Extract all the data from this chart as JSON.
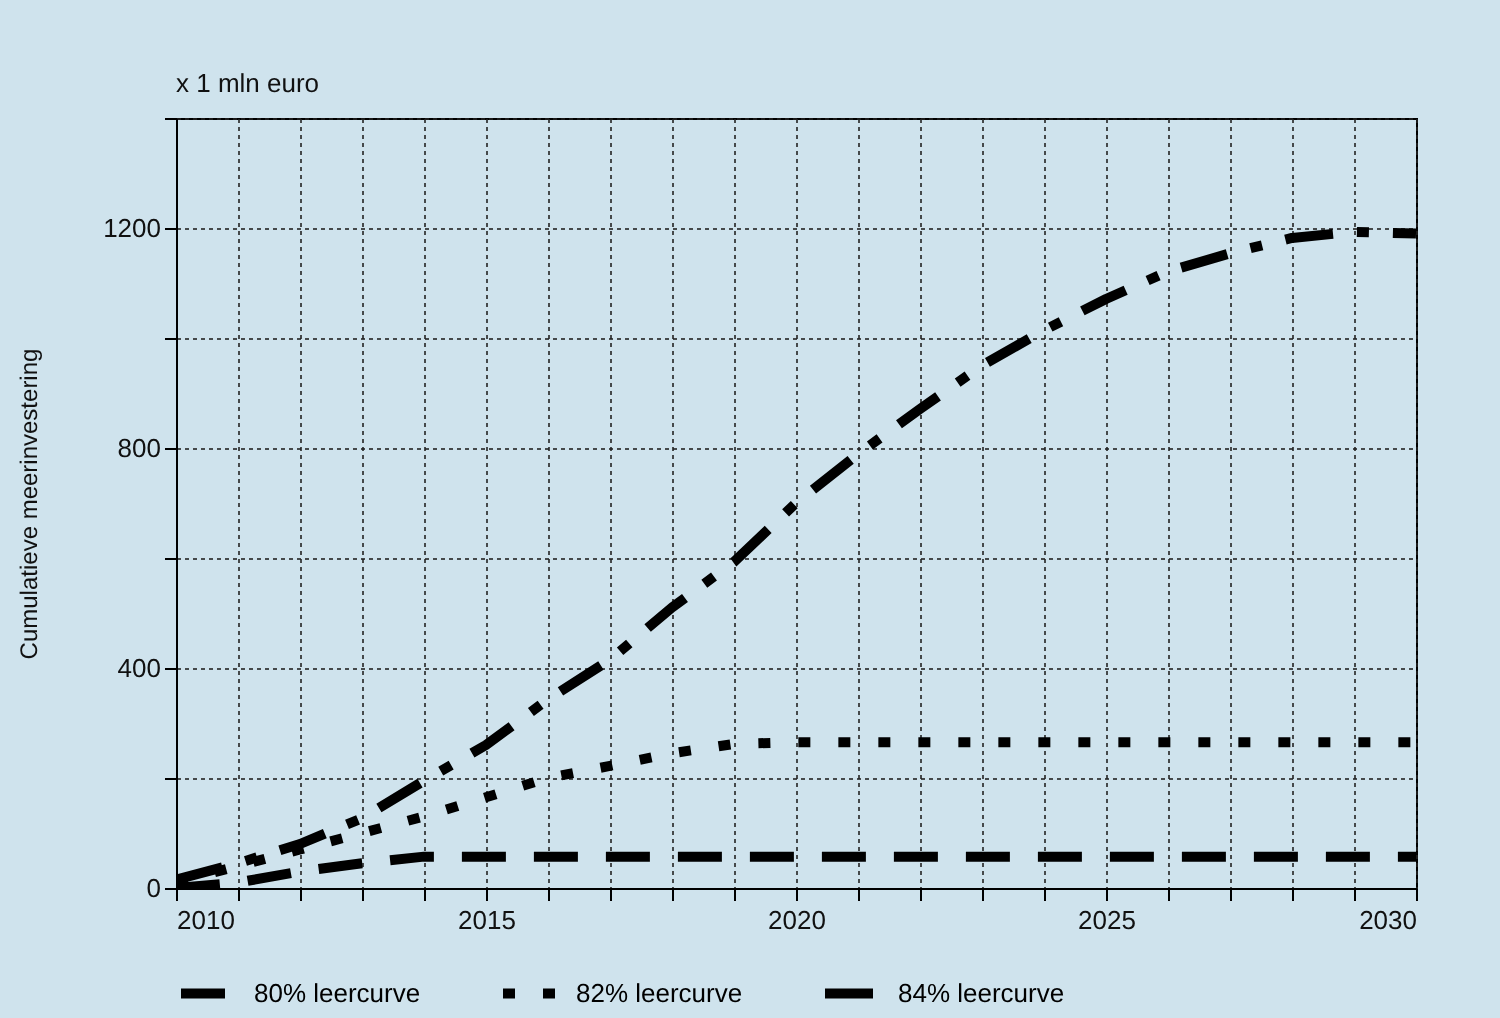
{
  "chart_data": {
    "type": "line",
    "ylabel": "Cumulatieve meerinvestering",
    "annotations": [
      "x 1 mln euro"
    ],
    "x": [
      2010,
      2011,
      2012,
      2013,
      2014,
      2015,
      2016,
      2017,
      2018,
      2019,
      2020,
      2021,
      2022,
      2023,
      2024,
      2025,
      2026,
      2027,
      2028,
      2029,
      2030
    ],
    "xlim": [
      2010,
      2030
    ],
    "xticks": [
      2010,
      {
        "value": 2011,
        "label": null
      },
      {
        "value": 2012,
        "label": null
      },
      {
        "value": 2013,
        "label": null
      },
      {
        "value": 2014,
        "label": null
      },
      2015,
      {
        "value": 2016,
        "label": null
      },
      {
        "value": 2017,
        "label": null
      },
      {
        "value": 2018,
        "label": null
      },
      {
        "value": 2019,
        "label": null
      },
      2020,
      {
        "value": 2021,
        "label": null
      },
      {
        "value": 2022,
        "label": null
      },
      {
        "value": 2023,
        "label": null
      },
      {
        "value": 2024,
        "label": null
      },
      2025,
      {
        "value": 2026,
        "label": null
      },
      {
        "value": 2027,
        "label": null
      },
      {
        "value": 2028,
        "label": null
      },
      {
        "value": 2029,
        "label": null
      },
      2030
    ],
    "ylim": [
      0,
      1400
    ],
    "yticks": [
      0,
      {
        "value": 200,
        "label": null
      },
      400,
      {
        "value": 600,
        "label": null
      },
      800,
      {
        "value": 1000,
        "label": null
      },
      1200,
      {
        "value": 1400,
        "label": null
      }
    ],
    "grid": true,
    "legend": "bottom",
    "marker": "none",
    "series": [
      {
        "name": "80% leercurve",
        "color": "#000000",
        "line_style": "dashed",
        "values": [
          0,
          10,
          30,
          45,
          57,
          57,
          57,
          57,
          57,
          57,
          57,
          57,
          57,
          57,
          57,
          57,
          57,
          57,
          57,
          57,
          57
        ]
      },
      {
        "name": "82% leercurve",
        "color": "#000000",
        "line_style": "dotted",
        "values": [
          10,
          40,
          70,
          100,
          130,
          165,
          200,
          222,
          245,
          262,
          265,
          265,
          265,
          265,
          265,
          265,
          265,
          265,
          265,
          265,
          265
        ]
      },
      {
        "name": "84% leercurve",
        "color": "#000000",
        "line_style": "dashdot",
        "values": [
          15,
          45,
          80,
          127,
          195,
          260,
          343,
          415,
          510,
          593,
          700,
          789,
          871,
          950,
          1014,
          1071,
          1121,
          1154,
          1182,
          1193,
          1190
        ]
      }
    ]
  }
}
